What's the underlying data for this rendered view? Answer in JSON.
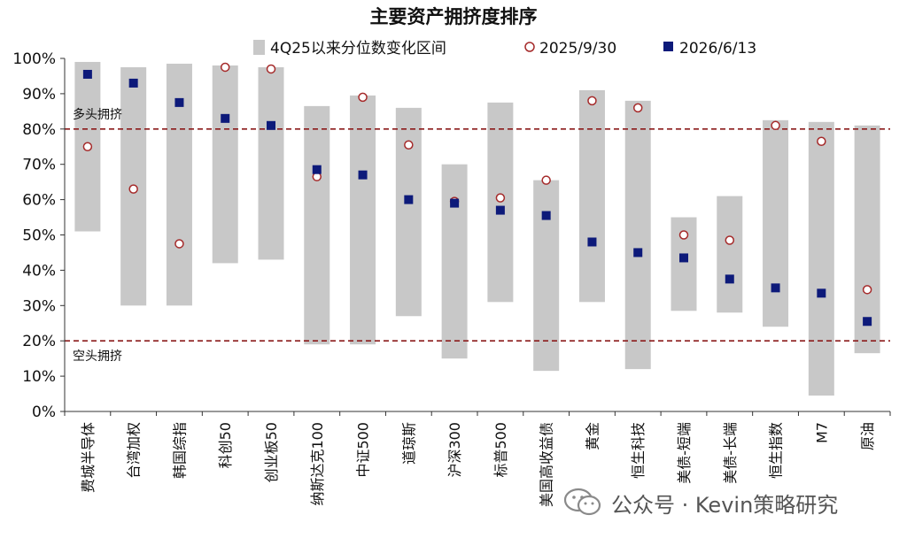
{
  "chart_data": {
    "type": "range-bar",
    "title": "主要资产拥挤度排序",
    "legend": {
      "range": "4Q25以来分位数变化区间",
      "series_a": "2025/9/30",
      "series_b": "2026/6/13",
      "placement": "top"
    },
    "categories": [
      "费城半导体",
      "台湾加权",
      "韩国综指",
      "科创50",
      "创业板50",
      "纳斯达克100",
      "中证500",
      "道琼斯",
      "沪深300",
      "标普500",
      "美国高收益债",
      "黄金",
      "恒生科技",
      "美债-短端",
      "美债-长端",
      "恒生指数",
      "M7",
      "原油"
    ],
    "range_low": [
      51,
      30,
      30,
      42,
      43,
      19,
      19,
      27,
      15,
      31,
      11.5,
      31,
      12,
      28.5,
      28,
      24,
      4.5,
      16.5
    ],
    "range_high": [
      99,
      97.5,
      98.5,
      98,
      97.5,
      86.5,
      89.5,
      86,
      70,
      87.5,
      65.5,
      91,
      88,
      55,
      61,
      82.5,
      82,
      81
    ],
    "series": [
      {
        "name": "2025/9/30",
        "values": [
          75,
          63,
          47.5,
          97.5,
          97,
          66.5,
          89,
          75.5,
          59.5,
          60.5,
          65.5,
          88,
          86,
          50,
          48.5,
          81,
          76.5,
          34.5
        ]
      },
      {
        "name": "2026/6/13",
        "values": [
          95.5,
          93,
          87.5,
          83,
          81,
          68.5,
          67,
          60,
          59,
          57,
          55.5,
          48,
          45,
          43.5,
          37.5,
          35,
          33.5,
          25.5
        ]
      }
    ],
    "y_ticks": [
      "0%",
      "10%",
      "20%",
      "30%",
      "40%",
      "50%",
      "60%",
      "70%",
      "80%",
      "90%",
      "100%"
    ],
    "ylim": [
      0,
      100
    ],
    "reference_lines": [
      {
        "value": 80,
        "label": "多头拥挤"
      },
      {
        "value": 20,
        "label": "空头拥挤"
      }
    ],
    "colors": {
      "range": "#c8c8c8",
      "series_a_stroke": "#a52a2a",
      "series_b_fill": "#0d1a7a",
      "reference": "#8b1a1a",
      "axis": "#333333"
    }
  },
  "watermark": {
    "text": "公众号 · Kevin策略研究",
    "icon": "wechat-icon"
  }
}
